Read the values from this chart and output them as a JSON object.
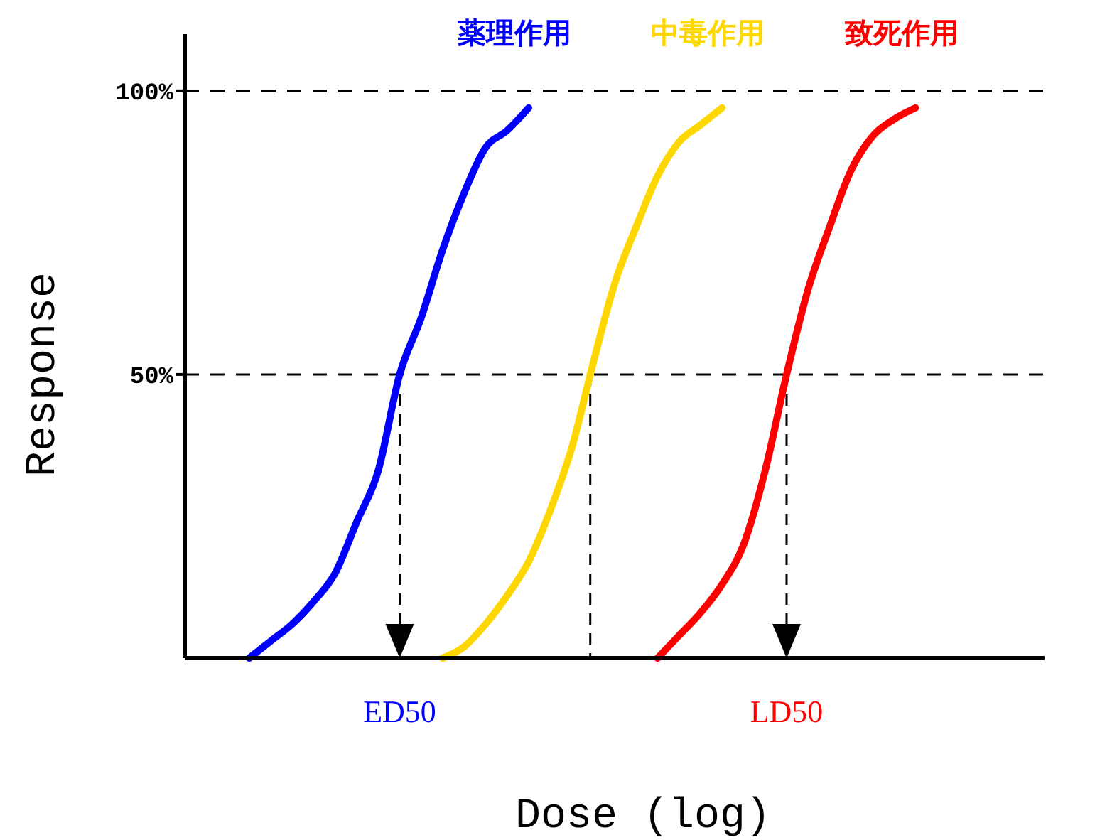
{
  "chart_data": {
    "type": "line",
    "xlabel": "Dose (log)",
    "ylabel": "Response",
    "categories": [
      null,
      null,
      null,
      null,
      null,
      null,
      null,
      null,
      null,
      null,
      null,
      null,
      null,
      null,
      null,
      null,
      null,
      null,
      null,
      null,
      null,
      null,
      null,
      null,
      null,
      null,
      null,
      null,
      null,
      null,
      null,
      null,
      null,
      null,
      null,
      null,
      null,
      null,
      null,
      null,
      null
    ],
    "ylim": [
      0,
      110
    ],
    "yticks": [
      {
        "value": 50,
        "label": "50%"
      },
      {
        "value": 100,
        "label": "100%"
      }
    ],
    "tick_labels": "y",
    "line_style": "solid",
    "series": [
      {
        "name": "薬理作用",
        "color": "#0000ff",
        "values": [
          null,
          null,
          null,
          0,
          3,
          6,
          10,
          15,
          24,
          33,
          50,
          60,
          72,
          82,
          90,
          93,
          97,
          null,
          null,
          null,
          null,
          null,
          null,
          null,
          null,
          null,
          null,
          null,
          null,
          null,
          null,
          null,
          null,
          null,
          null,
          null,
          null,
          null,
          null,
          null,
          null
        ]
      },
      {
        "name": "中毒作用",
        "color": "#ffd700",
        "values": [
          null,
          null,
          null,
          null,
          null,
          null,
          null,
          null,
          null,
          null,
          null,
          null,
          0,
          2,
          6,
          11,
          17,
          26,
          37,
          52,
          66,
          76,
          85,
          91,
          94,
          97,
          null,
          null,
          null,
          null,
          null,
          null,
          null,
          null,
          null,
          null,
          null,
          null,
          null,
          null,
          null
        ]
      },
      {
        "name": "致死作用",
        "color": "#ff0000",
        "values": [
          null,
          null,
          null,
          null,
          null,
          null,
          null,
          null,
          null,
          null,
          null,
          null,
          null,
          null,
          null,
          null,
          null,
          null,
          null,
          null,
          null,
          null,
          0,
          4,
          8,
          13,
          20,
          33,
          50,
          65,
          76,
          86,
          92,
          95,
          97,
          null,
          null,
          null,
          null,
          null,
          null
        ]
      }
    ],
    "ref_lines": [
      {
        "axis": "y",
        "value": 100,
        "color": "#000000",
        "line_style": "dashed"
      },
      {
        "axis": "y",
        "value": 50,
        "color": "#000000",
        "line_style": "dashed"
      }
    ],
    "annotations": [
      "ED50",
      "LD50"
    ]
  }
}
